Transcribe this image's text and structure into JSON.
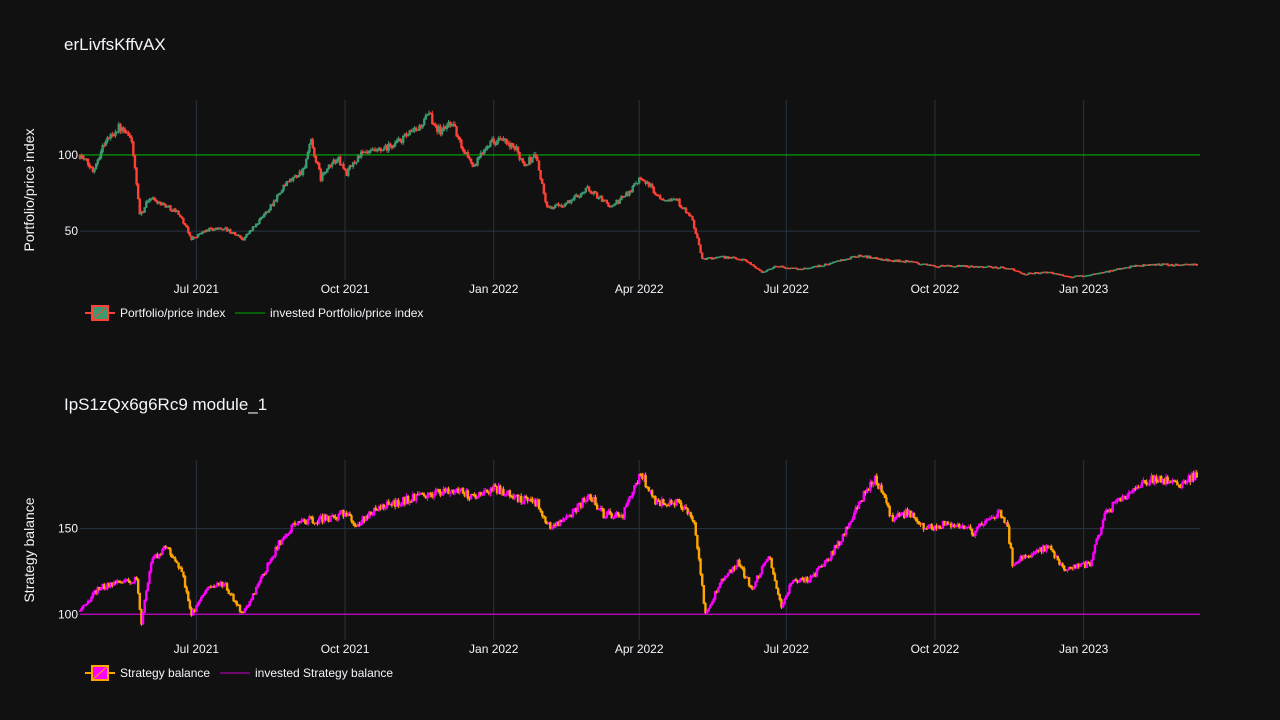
{
  "colors": {
    "background": "#111111",
    "grid": "#283442",
    "text": "#f2f5fa",
    "candle_up": "#3d9970",
    "candle_down": "#ff4136",
    "balance_up": "#ff00ff",
    "balance_down": "#ffa500",
    "invested_price": "#00aa00",
    "invested_balance": "#cc00cc"
  },
  "chart_data": [
    {
      "type": "candlestick",
      "title": "erLivfsKffvAX",
      "ylabel": "Portfolio/price index",
      "xlabel": "",
      "x_range": [
        "2021-04-20",
        "2023-03-14"
      ],
      "ylim": [
        18,
        136
      ],
      "yticks": [
        50,
        100
      ],
      "xticks": [
        {
          "date": "2021-07-01",
          "label": "Jul 2021"
        },
        {
          "date": "2021-10-01",
          "label": "Oct 2021"
        },
        {
          "date": "2022-01-01",
          "label": "Jan 2022"
        },
        {
          "date": "2022-04-01",
          "label": "Apr 2022"
        },
        {
          "date": "2022-07-01",
          "label": "Jul 2022"
        },
        {
          "date": "2022-10-01",
          "label": "Oct 2022"
        },
        {
          "date": "2023-01-01",
          "label": "Jan 2023"
        }
      ],
      "grid": true,
      "legend_position": "bottom-left",
      "series": [
        {
          "name": "Portfolio/price index",
          "kind": "candles",
          "keypoints": [
            [
              "2021-04-20",
              100
            ],
            [
              "2021-04-28",
              90
            ],
            [
              "2021-05-05",
              108
            ],
            [
              "2021-05-14",
              118
            ],
            [
              "2021-05-22",
              110
            ],
            [
              "2021-05-27",
              60
            ],
            [
              "2021-06-02",
              72
            ],
            [
              "2021-06-10",
              68
            ],
            [
              "2021-06-20",
              62
            ],
            [
              "2021-06-28",
              45
            ],
            [
              "2021-07-08",
              51
            ],
            [
              "2021-07-18",
              52
            ],
            [
              "2021-07-30",
              45
            ],
            [
              "2021-08-10",
              58
            ],
            [
              "2021-08-25",
              80
            ],
            [
              "2021-09-05",
              90
            ],
            [
              "2021-09-10",
              108
            ],
            [
              "2021-09-16",
              85
            ],
            [
              "2021-09-26",
              98
            ],
            [
              "2021-10-02",
              88
            ],
            [
              "2021-10-10",
              100
            ],
            [
              "2021-10-25",
              103
            ],
            [
              "2021-11-05",
              110
            ],
            [
              "2021-11-15",
              117
            ],
            [
              "2021-11-22",
              126
            ],
            [
              "2021-11-29",
              115
            ],
            [
              "2021-12-06",
              122
            ],
            [
              "2021-12-11",
              108
            ],
            [
              "2021-12-20",
              92
            ],
            [
              "2021-12-28",
              108
            ],
            [
              "2022-01-05",
              110
            ],
            [
              "2022-01-15",
              103
            ],
            [
              "2022-01-20",
              94
            ],
            [
              "2022-01-27",
              100
            ],
            [
              "2022-02-03",
              65
            ],
            [
              "2022-02-15",
              68
            ],
            [
              "2022-02-28",
              78
            ],
            [
              "2022-03-15",
              66
            ],
            [
              "2022-03-25",
              75
            ],
            [
              "2022-04-02",
              86
            ],
            [
              "2022-04-14",
              72
            ],
            [
              "2022-04-24",
              71
            ],
            [
              "2022-05-04",
              57
            ],
            [
              "2022-05-10",
              32
            ],
            [
              "2022-05-25",
              33
            ],
            [
              "2022-06-06",
              31
            ],
            [
              "2022-06-16",
              23
            ],
            [
              "2022-06-25",
              27
            ],
            [
              "2022-07-10",
              25
            ],
            [
              "2022-07-25",
              28
            ],
            [
              "2022-08-05",
              31
            ],
            [
              "2022-08-15",
              34
            ],
            [
              "2022-09-01",
              31
            ],
            [
              "2022-09-15",
              30
            ],
            [
              "2022-10-01",
              27
            ],
            [
              "2022-10-25",
              27
            ],
            [
              "2022-11-15",
              26
            ],
            [
              "2022-11-25",
              22
            ],
            [
              "2022-12-10",
              23
            ],
            [
              "2022-12-25",
              20
            ],
            [
              "2023-01-10",
              22
            ],
            [
              "2023-01-25",
              26
            ],
            [
              "2023-02-10",
              28
            ],
            [
              "2023-02-25",
              28
            ],
            [
              "2023-03-12",
              28
            ]
          ]
        },
        {
          "name": "invested Portfolio/price index",
          "kind": "line",
          "value": 100
        }
      ]
    },
    {
      "type": "candlestick",
      "title": "IpS1zQx6g6Rc9 module_1",
      "ylabel": "Strategy balance",
      "xlabel": "",
      "x_range": [
        "2021-04-20",
        "2023-03-14"
      ],
      "ylim": [
        85,
        190
      ],
      "yticks": [
        100,
        150
      ],
      "xticks": [
        {
          "date": "2021-07-01",
          "label": "Jul 2021"
        },
        {
          "date": "2021-10-01",
          "label": "Oct 2021"
        },
        {
          "date": "2022-01-01",
          "label": "Jan 2022"
        },
        {
          "date": "2022-04-01",
          "label": "Apr 2022"
        },
        {
          "date": "2022-07-01",
          "label": "Jul 2022"
        },
        {
          "date": "2022-10-01",
          "label": "Oct 2022"
        },
        {
          "date": "2023-01-01",
          "label": "Jan 2023"
        }
      ],
      "grid": true,
      "legend_position": "bottom-left",
      "series": [
        {
          "name": "Strategy balance",
          "kind": "candles",
          "keypoints": [
            [
              "2021-04-20",
              102
            ],
            [
              "2021-05-01",
              115
            ],
            [
              "2021-05-15",
              119
            ],
            [
              "2021-05-25",
              120
            ],
            [
              "2021-05-28",
              95
            ],
            [
              "2021-06-03",
              130
            ],
            [
              "2021-06-12",
              140
            ],
            [
              "2021-06-22",
              125
            ],
            [
              "2021-06-28",
              100
            ],
            [
              "2021-07-08",
              115
            ],
            [
              "2021-07-18",
              118
            ],
            [
              "2021-07-30",
              100
            ],
            [
              "2021-08-10",
              120
            ],
            [
              "2021-08-20",
              140
            ],
            [
              "2021-09-01",
              154
            ],
            [
              "2021-09-20",
              156
            ],
            [
              "2021-10-01",
              159
            ],
            [
              "2021-10-08",
              152
            ],
            [
              "2021-10-20",
              161
            ],
            [
              "2021-11-01",
              165
            ],
            [
              "2021-11-20",
              170
            ],
            [
              "2021-12-10",
              172
            ],
            [
              "2021-12-20",
              168
            ],
            [
              "2022-01-01",
              174
            ],
            [
              "2022-01-15",
              168
            ],
            [
              "2022-01-28",
              165
            ],
            [
              "2022-02-05",
              150
            ],
            [
              "2022-02-20",
              160
            ],
            [
              "2022-03-01",
              170
            ],
            [
              "2022-03-10",
              158
            ],
            [
              "2022-03-22",
              158
            ],
            [
              "2022-04-02",
              182
            ],
            [
              "2022-04-12",
              165
            ],
            [
              "2022-04-25",
              165
            ],
            [
              "2022-05-05",
              155
            ],
            [
              "2022-05-12",
              100
            ],
            [
              "2022-05-22",
              120
            ],
            [
              "2022-06-01",
              130
            ],
            [
              "2022-06-10",
              115
            ],
            [
              "2022-06-20",
              135
            ],
            [
              "2022-06-28",
              105
            ],
            [
              "2022-07-05",
              120
            ],
            [
              "2022-07-15",
              120
            ],
            [
              "2022-07-25",
              130
            ],
            [
              "2022-08-05",
              145
            ],
            [
              "2022-08-15",
              165
            ],
            [
              "2022-08-25",
              180
            ],
            [
              "2022-09-05",
              155
            ],
            [
              "2022-09-15",
              160
            ],
            [
              "2022-09-25",
              150
            ],
            [
              "2022-10-10",
              153
            ],
            [
              "2022-10-25",
              148
            ],
            [
              "2022-11-10",
              160
            ],
            [
              "2022-11-15",
              150
            ],
            [
              "2022-11-18",
              130
            ],
            [
              "2022-12-01",
              135
            ],
            [
              "2022-12-10",
              140
            ],
            [
              "2022-12-20",
              125
            ],
            [
              "2023-01-05",
              130
            ],
            [
              "2023-01-15",
              160
            ],
            [
              "2023-01-28",
              170
            ],
            [
              "2023-02-15",
              180
            ],
            [
              "2023-03-01",
              175
            ],
            [
              "2023-03-12",
              182
            ]
          ]
        },
        {
          "name": "invested Strategy balance",
          "kind": "line",
          "value": 100
        }
      ]
    }
  ]
}
